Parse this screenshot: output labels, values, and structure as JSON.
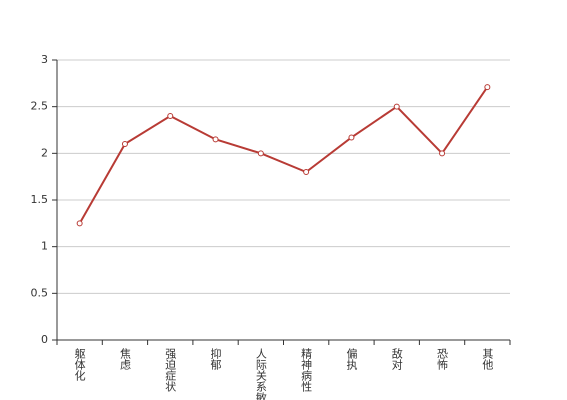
{
  "chart_data": {
    "type": "line",
    "categories": [
      "躯体化",
      "焦虑",
      "强迫症状",
      "抑郁",
      "人际关系敏感",
      "精神病性",
      "偏执",
      "敌对",
      "恐怖",
      "其他"
    ],
    "series": [
      {
        "color": "#b83b35",
        "values": [
          1.25,
          2.1,
          2.4,
          2.15,
          2.0,
          1.8,
          2.17,
          2.5,
          2.0,
          2.71
        ]
      }
    ],
    "ylim": [
      0,
      3
    ],
    "yticks": [
      0,
      0.5,
      1,
      1.5,
      2,
      2.5,
      3
    ],
    "grid": true
  }
}
